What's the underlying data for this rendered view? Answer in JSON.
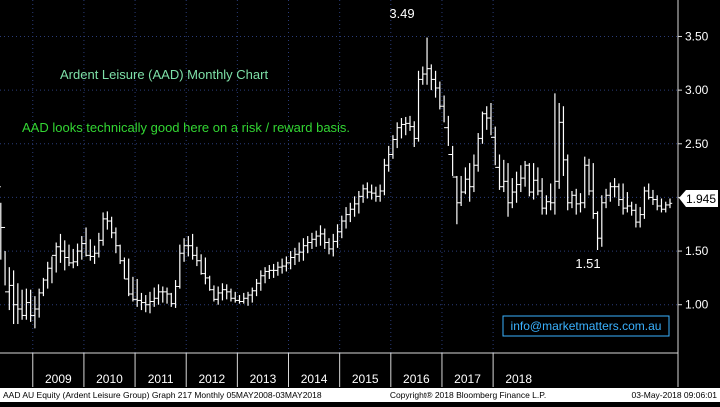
{
  "colors": {
    "background": "#000000",
    "plot_background": "#000000",
    "bars": "#ffffff",
    "grid": "#2a3c78",
    "axis_text": "#ffffff",
    "title_text": "#7ee0a8",
    "comment_text": "#33d633",
    "link_text": "#3ab2ff",
    "footer_bg": "#ffffff",
    "footer_text": "#000000",
    "last_price_bg": "#ffffff",
    "last_price_text": "#000000"
  },
  "annotations": {
    "title": "Ardent Leisure (AAD) Monthly Chart",
    "comment": "AAD looks technically good here on a risk / reward basis.",
    "link": "info@marketmatters.com.au",
    "high_label": "3.49",
    "low_label": "1.51",
    "last_price": "1.945"
  },
  "footer": {
    "left": "AAD AU Equity (Ardent Leisure Group) Graph 217  Monthly 05MAY2008-03MAY2018",
    "center": "Copyright® 2018 Bloomberg Finance L.P.",
    "right": "03-May-2018 09:06:01"
  },
  "chart_data": {
    "type": "ohlc",
    "title": "Ardent Leisure (AAD) Monthly Chart",
    "y_axis_side": "right",
    "ylim": [
      0.55,
      3.84
    ],
    "y_ticks": [
      "3.50",
      "3.00",
      "2.50",
      "2.00",
      "1.50",
      "1.00"
    ],
    "y_tick_values": [
      3.5,
      3.0,
      2.5,
      2.0,
      1.5,
      1.0
    ],
    "x_labels": [
      "2009",
      "2010",
      "2011",
      "2012",
      "2013",
      "2014",
      "2015",
      "2016",
      "2017",
      "2018"
    ],
    "grid": "dotted horizontal and vertical",
    "start": "May 2008",
    "series": [
      {
        "values": [
          [
            2.1,
            1.95,
            1.42
          ],
          [
            1.72,
            1.5,
            1.18
          ],
          [
            1.12,
            1.35,
            0.95
          ],
          [
            1.18,
            1.32,
            0.82
          ],
          [
            1.0,
            1.2,
            0.82
          ],
          [
            0.96,
            1.14,
            0.86
          ],
          [
            0.9,
            1.15,
            0.86
          ],
          [
            1.02,
            1.14,
            0.84
          ],
          [
            0.9,
            1.08,
            0.78
          ],
          [
            0.96,
            1.15,
            0.88
          ],
          [
            1.11,
            1.25,
            1.08
          ],
          [
            1.23,
            1.4,
            1.15
          ],
          [
            1.34,
            1.45,
            1.2
          ],
          [
            1.46,
            1.58,
            1.3
          ],
          [
            1.54,
            1.66,
            1.39
          ],
          [
            1.5,
            1.6,
            1.32
          ],
          [
            1.44,
            1.56,
            1.36
          ],
          [
            1.39,
            1.52,
            1.34
          ],
          [
            1.4,
            1.57,
            1.36
          ],
          [
            1.5,
            1.64,
            1.42
          ],
          [
            1.57,
            1.72,
            1.45
          ],
          [
            1.46,
            1.61,
            1.41
          ],
          [
            1.45,
            1.55,
            1.38
          ],
          [
            1.48,
            1.67,
            1.44
          ],
          [
            1.6,
            1.86,
            1.55
          ],
          [
            1.8,
            1.87,
            1.7
          ],
          [
            1.78,
            1.82,
            1.62
          ],
          [
            1.67,
            1.72,
            1.48
          ],
          [
            1.55,
            1.56,
            1.38
          ],
          [
            1.41,
            1.44,
            1.24
          ],
          [
            1.24,
            1.43,
            1.08
          ],
          [
            1.1,
            1.26,
            1.03
          ],
          [
            1.05,
            1.24,
            0.98
          ],
          [
            1.04,
            1.11,
            0.95
          ],
          [
            1.02,
            1.09,
            0.93
          ],
          [
            1.0,
            1.12,
            0.92
          ],
          [
            1.03,
            1.16,
            0.98
          ],
          [
            1.06,
            1.19,
            1.0
          ],
          [
            1.12,
            1.17,
            1.02
          ],
          [
            1.12,
            1.16,
            1.01
          ],
          [
            1.1,
            1.11,
            0.98
          ],
          [
            1.01,
            1.23,
            0.97
          ],
          [
            1.17,
            1.56,
            1.15
          ],
          [
            1.48,
            1.62,
            1.4
          ],
          [
            1.55,
            1.64,
            1.45
          ],
          [
            1.55,
            1.66,
            1.42
          ],
          [
            1.46,
            1.54,
            1.36
          ],
          [
            1.41,
            1.47,
            1.28
          ],
          [
            1.29,
            1.44,
            1.19
          ],
          [
            1.25,
            1.27,
            1.13
          ],
          [
            1.14,
            1.18,
            1.03
          ],
          [
            1.05,
            1.17,
            1.0
          ],
          [
            1.11,
            1.2,
            1.04
          ],
          [
            1.14,
            1.19,
            1.05
          ],
          [
            1.12,
            1.15,
            1.03
          ],
          [
            1.06,
            1.12,
            1.02
          ],
          [
            1.04,
            1.09,
            1.01
          ],
          [
            1.03,
            1.11,
            1.01
          ],
          [
            1.06,
            1.12,
            0.99
          ],
          [
            1.09,
            1.16,
            1.02
          ],
          [
            1.13,
            1.24,
            1.08
          ],
          [
            1.2,
            1.32,
            1.13
          ],
          [
            1.27,
            1.35,
            1.2
          ],
          [
            1.31,
            1.37,
            1.24
          ],
          [
            1.32,
            1.38,
            1.25
          ],
          [
            1.32,
            1.4,
            1.27
          ],
          [
            1.35,
            1.43,
            1.29
          ],
          [
            1.36,
            1.45,
            1.31
          ],
          [
            1.39,
            1.5,
            1.33
          ],
          [
            1.44,
            1.53,
            1.37
          ],
          [
            1.47,
            1.58,
            1.4
          ],
          [
            1.49,
            1.62,
            1.41
          ],
          [
            1.55,
            1.64,
            1.48
          ],
          [
            1.58,
            1.67,
            1.52
          ],
          [
            1.61,
            1.69,
            1.54
          ],
          [
            1.64,
            1.74,
            1.55
          ],
          [
            1.66,
            1.71,
            1.52
          ],
          [
            1.58,
            1.62,
            1.47
          ],
          [
            1.52,
            1.66,
            1.45
          ],
          [
            1.59,
            1.75,
            1.53
          ],
          [
            1.68,
            1.83,
            1.62
          ],
          [
            1.78,
            1.91,
            1.71
          ],
          [
            1.84,
            1.95,
            1.77
          ],
          [
            1.89,
            2.01,
            1.82
          ],
          [
            1.94,
            2.06,
            1.85
          ],
          [
            2.01,
            2.12,
            1.95
          ],
          [
            2.08,
            2.14,
            1.99
          ],
          [
            2.05,
            2.12,
            1.98
          ],
          [
            2.04,
            2.1,
            1.96
          ],
          [
            2.01,
            2.12,
            1.96
          ],
          [
            2.06,
            2.36,
            2.02
          ],
          [
            2.3,
            2.48,
            2.24
          ],
          [
            2.4,
            2.58,
            2.36
          ],
          [
            2.54,
            2.7,
            2.46
          ],
          [
            2.65,
            2.74,
            2.55
          ],
          [
            2.68,
            2.75,
            2.58
          ],
          [
            2.69,
            2.76,
            2.62
          ],
          [
            2.66,
            2.71,
            2.47
          ],
          [
            2.55,
            3.18,
            2.52
          ],
          [
            3.1,
            3.22,
            3.05
          ],
          [
            3.15,
            3.49,
            3.05
          ],
          [
            3.2,
            3.24,
            3.0
          ],
          [
            3.1,
            3.18,
            2.93
          ],
          [
            3.02,
            3.08,
            2.82
          ],
          [
            2.85,
            2.95,
            2.7
          ],
          [
            2.65,
            2.76,
            2.48
          ],
          [
            2.4,
            2.48,
            2.2
          ],
          [
            2.19,
            2.2,
            1.75
          ],
          [
            1.95,
            2.2,
            1.92
          ],
          [
            2.05,
            2.28,
            2.03
          ],
          [
            2.17,
            2.32,
            1.96
          ],
          [
            2.1,
            2.4,
            2.05
          ],
          [
            2.3,
            2.6,
            2.24
          ],
          [
            2.55,
            2.8,
            2.5
          ],
          [
            2.78,
            2.85,
            2.63
          ],
          [
            2.74,
            2.88,
            2.58
          ],
          [
            2.56,
            2.66,
            2.3
          ],
          [
            2.28,
            2.4,
            2.07
          ],
          [
            2.1,
            2.35,
            2.05
          ],
          [
            2.15,
            2.32,
            1.82
          ],
          [
            1.95,
            2.18,
            1.9
          ],
          [
            2.05,
            2.24,
            1.95
          ],
          [
            2.12,
            2.3,
            2.05
          ],
          [
            2.18,
            2.34,
            2.1
          ],
          [
            2.3,
            2.32,
            2.01
          ],
          [
            2.05,
            2.32,
            1.98
          ],
          [
            2.16,
            2.28,
            2.02
          ],
          [
            2.06,
            2.18,
            1.84
          ],
          [
            1.9,
            2.02,
            1.84
          ],
          [
            1.96,
            2.13,
            1.88
          ],
          [
            1.95,
            2.97,
            1.84
          ],
          [
            2.15,
            2.88,
            2.08
          ],
          [
            2.7,
            2.85,
            2.2
          ],
          [
            2.35,
            2.4,
            1.88
          ],
          [
            1.95,
            2.06,
            1.9
          ],
          [
            2.02,
            2.08,
            1.84
          ],
          [
            1.94,
            2.04,
            1.86
          ],
          [
            1.95,
            2.38,
            1.9
          ],
          [
            2.3,
            2.36,
            2.02
          ],
          [
            2.06,
            2.32,
            1.8
          ],
          [
            1.85,
            1.87,
            1.51
          ],
          [
            1.62,
            2.02,
            1.54
          ],
          [
            1.95,
            2.08,
            1.9
          ],
          [
            2.02,
            2.14,
            1.96
          ],
          [
            2.1,
            2.18,
            2.0
          ],
          [
            2.1,
            2.13,
            1.92
          ],
          [
            1.98,
            2.13,
            1.84
          ],
          [
            1.9,
            2.05,
            1.86
          ],
          [
            1.92,
            1.96,
            1.83
          ],
          [
            1.88,
            1.94,
            1.72
          ],
          [
            1.77,
            1.91,
            1.72
          ],
          [
            1.84,
            2.1,
            1.8
          ],
          [
            2.06,
            2.13,
            1.98
          ],
          [
            2.0,
            2.07,
            1.93
          ],
          [
            1.98,
            2.02,
            1.88
          ],
          [
            1.92,
            1.99,
            1.86
          ],
          [
            1.89,
            1.96,
            1.86
          ],
          [
            1.93,
            1.99,
            1.9
          ]
        ]
      }
    ]
  }
}
